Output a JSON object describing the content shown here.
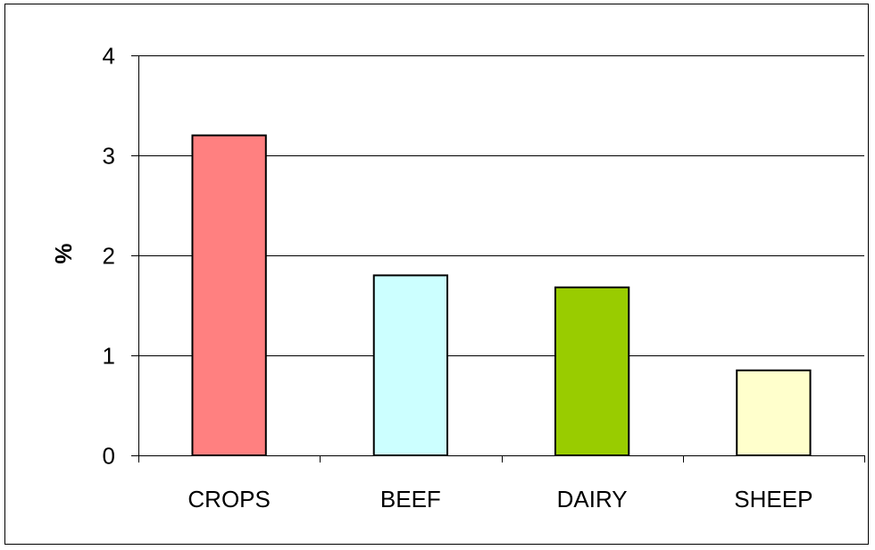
{
  "chart_data": {
    "type": "bar",
    "title": "",
    "xlabel": "",
    "ylabel": "%",
    "categories": [
      "CROPS",
      "BEEF",
      "DAIRY",
      "SHEEP"
    ],
    "values": [
      3.2,
      1.8,
      1.68,
      0.85
    ],
    "colors": [
      "#ff8080",
      "#ccffff",
      "#99cc00",
      "#ffffcc"
    ],
    "ylim": [
      0,
      4
    ],
    "yticks": [
      0,
      1,
      2,
      3,
      4
    ],
    "grid": true,
    "legend": "none"
  }
}
